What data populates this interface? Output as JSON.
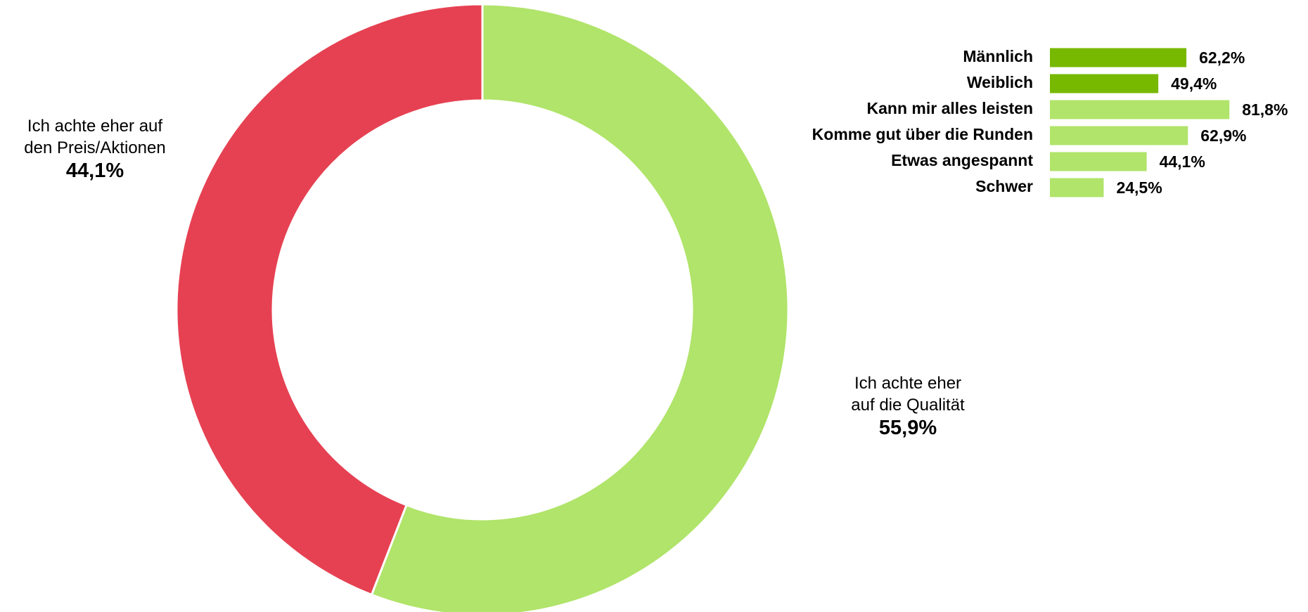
{
  "chart_data": [
    {
      "type": "donut",
      "categories": [
        "Ich achte eher\nauf die Qualität",
        "Ich achte eher auf\nden Preis/Aktionen"
      ],
      "values": [
        55.9,
        44.1
      ],
      "value_labels": [
        "55,9%",
        "44,1%"
      ],
      "colors": [
        "#b0e46a",
        "#e64152"
      ]
    },
    {
      "type": "hbar",
      "categories": [
        "Männlich",
        "Weiblich",
        "Kann mir alles leisten",
        "Komme gut über die Runden",
        "Etwas angespannt",
        "Schwer"
      ],
      "values": [
        62.2,
        49.4,
        81.8,
        62.9,
        44.1,
        24.5
      ],
      "value_labels": [
        "62,2%",
        "49,4%",
        "81,8%",
        "62,9%",
        "44,1%",
        "24,5%"
      ],
      "colors": [
        "#77b800",
        "#77b800",
        "#b0e46a",
        "#b0e46a",
        "#b0e46a",
        "#b0e46a"
      ]
    }
  ]
}
